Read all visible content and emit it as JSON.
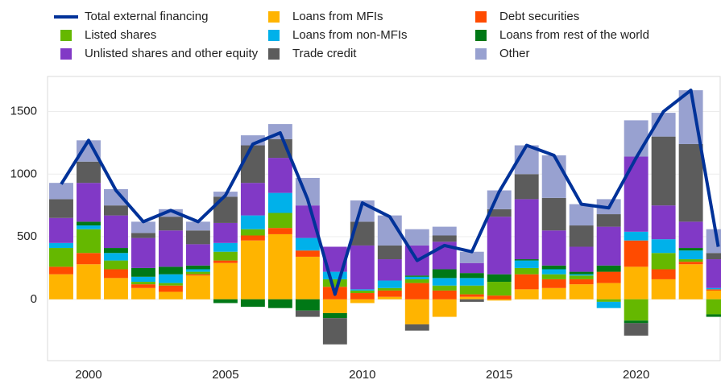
{
  "chart_data": {
    "type": "bar",
    "stacked": true,
    "x": [
      1999,
      2000,
      2001,
      2002,
      2003,
      2004,
      2005,
      2006,
      2007,
      2008,
      2009,
      2010,
      2011,
      2012,
      2013,
      2014,
      2015,
      2016,
      2017,
      2018,
      2019,
      2020,
      2021,
      2022,
      2023
    ],
    "xlim": [
      1998.5,
      2023.1
    ],
    "xticks": [
      2000,
      2005,
      2010,
      2015,
      2020
    ],
    "ylim": [
      -490,
      1780
    ],
    "yticks": [
      0,
      500,
      1000,
      1500
    ],
    "grid": true,
    "series": [
      {
        "name": "Total external financing",
        "type": "line",
        "color": "#003299",
        "values": [
          920,
          1270,
          870,
          620,
          710,
          620,
          830,
          1240,
          1330,
          800,
          40,
          770,
          660,
          310,
          430,
          380,
          860,
          1230,
          1150,
          760,
          730,
          1130,
          1500,
          1670,
          420
        ]
      },
      {
        "name": "Loans from MFIs",
        "type": "bar",
        "color": "#ffb400",
        "values": [
          200,
          280,
          170,
          90,
          60,
          190,
          290,
          470,
          520,
          340,
          -110,
          -30,
          20,
          -200,
          -140,
          20,
          -10,
          80,
          90,
          120,
          130,
          260,
          160,
          280,
          70
        ]
      },
      {
        "name": "Debt securities",
        "type": "bar",
        "color": "#ff4b00",
        "values": [
          60,
          90,
          70,
          30,
          50,
          10,
          20,
          40,
          50,
          50,
          100,
          50,
          50,
          130,
          70,
          20,
          30,
          120,
          70,
          40,
          90,
          210,
          80,
          20,
          10
        ]
      },
      {
        "name": "Listed shares",
        "type": "bar",
        "color": "#65b800",
        "values": [
          150,
          190,
          70,
          20,
          20,
          20,
          70,
          50,
          120,
          0,
          60,
          20,
          20,
          30,
          40,
          70,
          110,
          50,
          40,
          30,
          -20,
          -170,
          130,
          20,
          -120
        ]
      },
      {
        "name": "Loans from non-MFIs",
        "type": "bar",
        "color": "#00b1ea",
        "values": [
          40,
          30,
          60,
          40,
          70,
          20,
          70,
          110,
          160,
          100,
          60,
          10,
          60,
          20,
          60,
          60,
          0,
          60,
          40,
          10,
          -50,
          70,
          110,
          70,
          10
        ]
      },
      {
        "name": "Loans from rest of the world",
        "type": "bar",
        "color": "#007816",
        "values": [
          0,
          30,
          40,
          70,
          60,
          30,
          -30,
          -60,
          -70,
          -90,
          -40,
          0,
          0,
          10,
          70,
          40,
          60,
          10,
          30,
          20,
          50,
          -20,
          0,
          20,
          -20
        ]
      },
      {
        "name": "Unlisted shares and other equity",
        "type": "bar",
        "color": "#8139c6",
        "values": [
          200,
          310,
          260,
          240,
          290,
          170,
          160,
          260,
          280,
          260,
          200,
          350,
          170,
          240,
          220,
          80,
          460,
          480,
          280,
          200,
          310,
          600,
          270,
          210,
          230
        ]
      },
      {
        "name": "Trade credit",
        "type": "bar",
        "color": "#5c5c5c",
        "values": [
          150,
          170,
          80,
          40,
          110,
          110,
          210,
          300,
          150,
          -50,
          -210,
          190,
          110,
          -50,
          50,
          -20,
          60,
          200,
          260,
          170,
          100,
          -100,
          550,
          620,
          50
        ]
      },
      {
        "name": "Other",
        "type": "bar",
        "color": "#98a1d0",
        "values": [
          130,
          170,
          130,
          90,
          60,
          70,
          40,
          80,
          120,
          220,
          0,
          170,
          240,
          130,
          70,
          90,
          150,
          230,
          340,
          170,
          120,
          290,
          190,
          430,
          190
        ]
      }
    ]
  }
}
